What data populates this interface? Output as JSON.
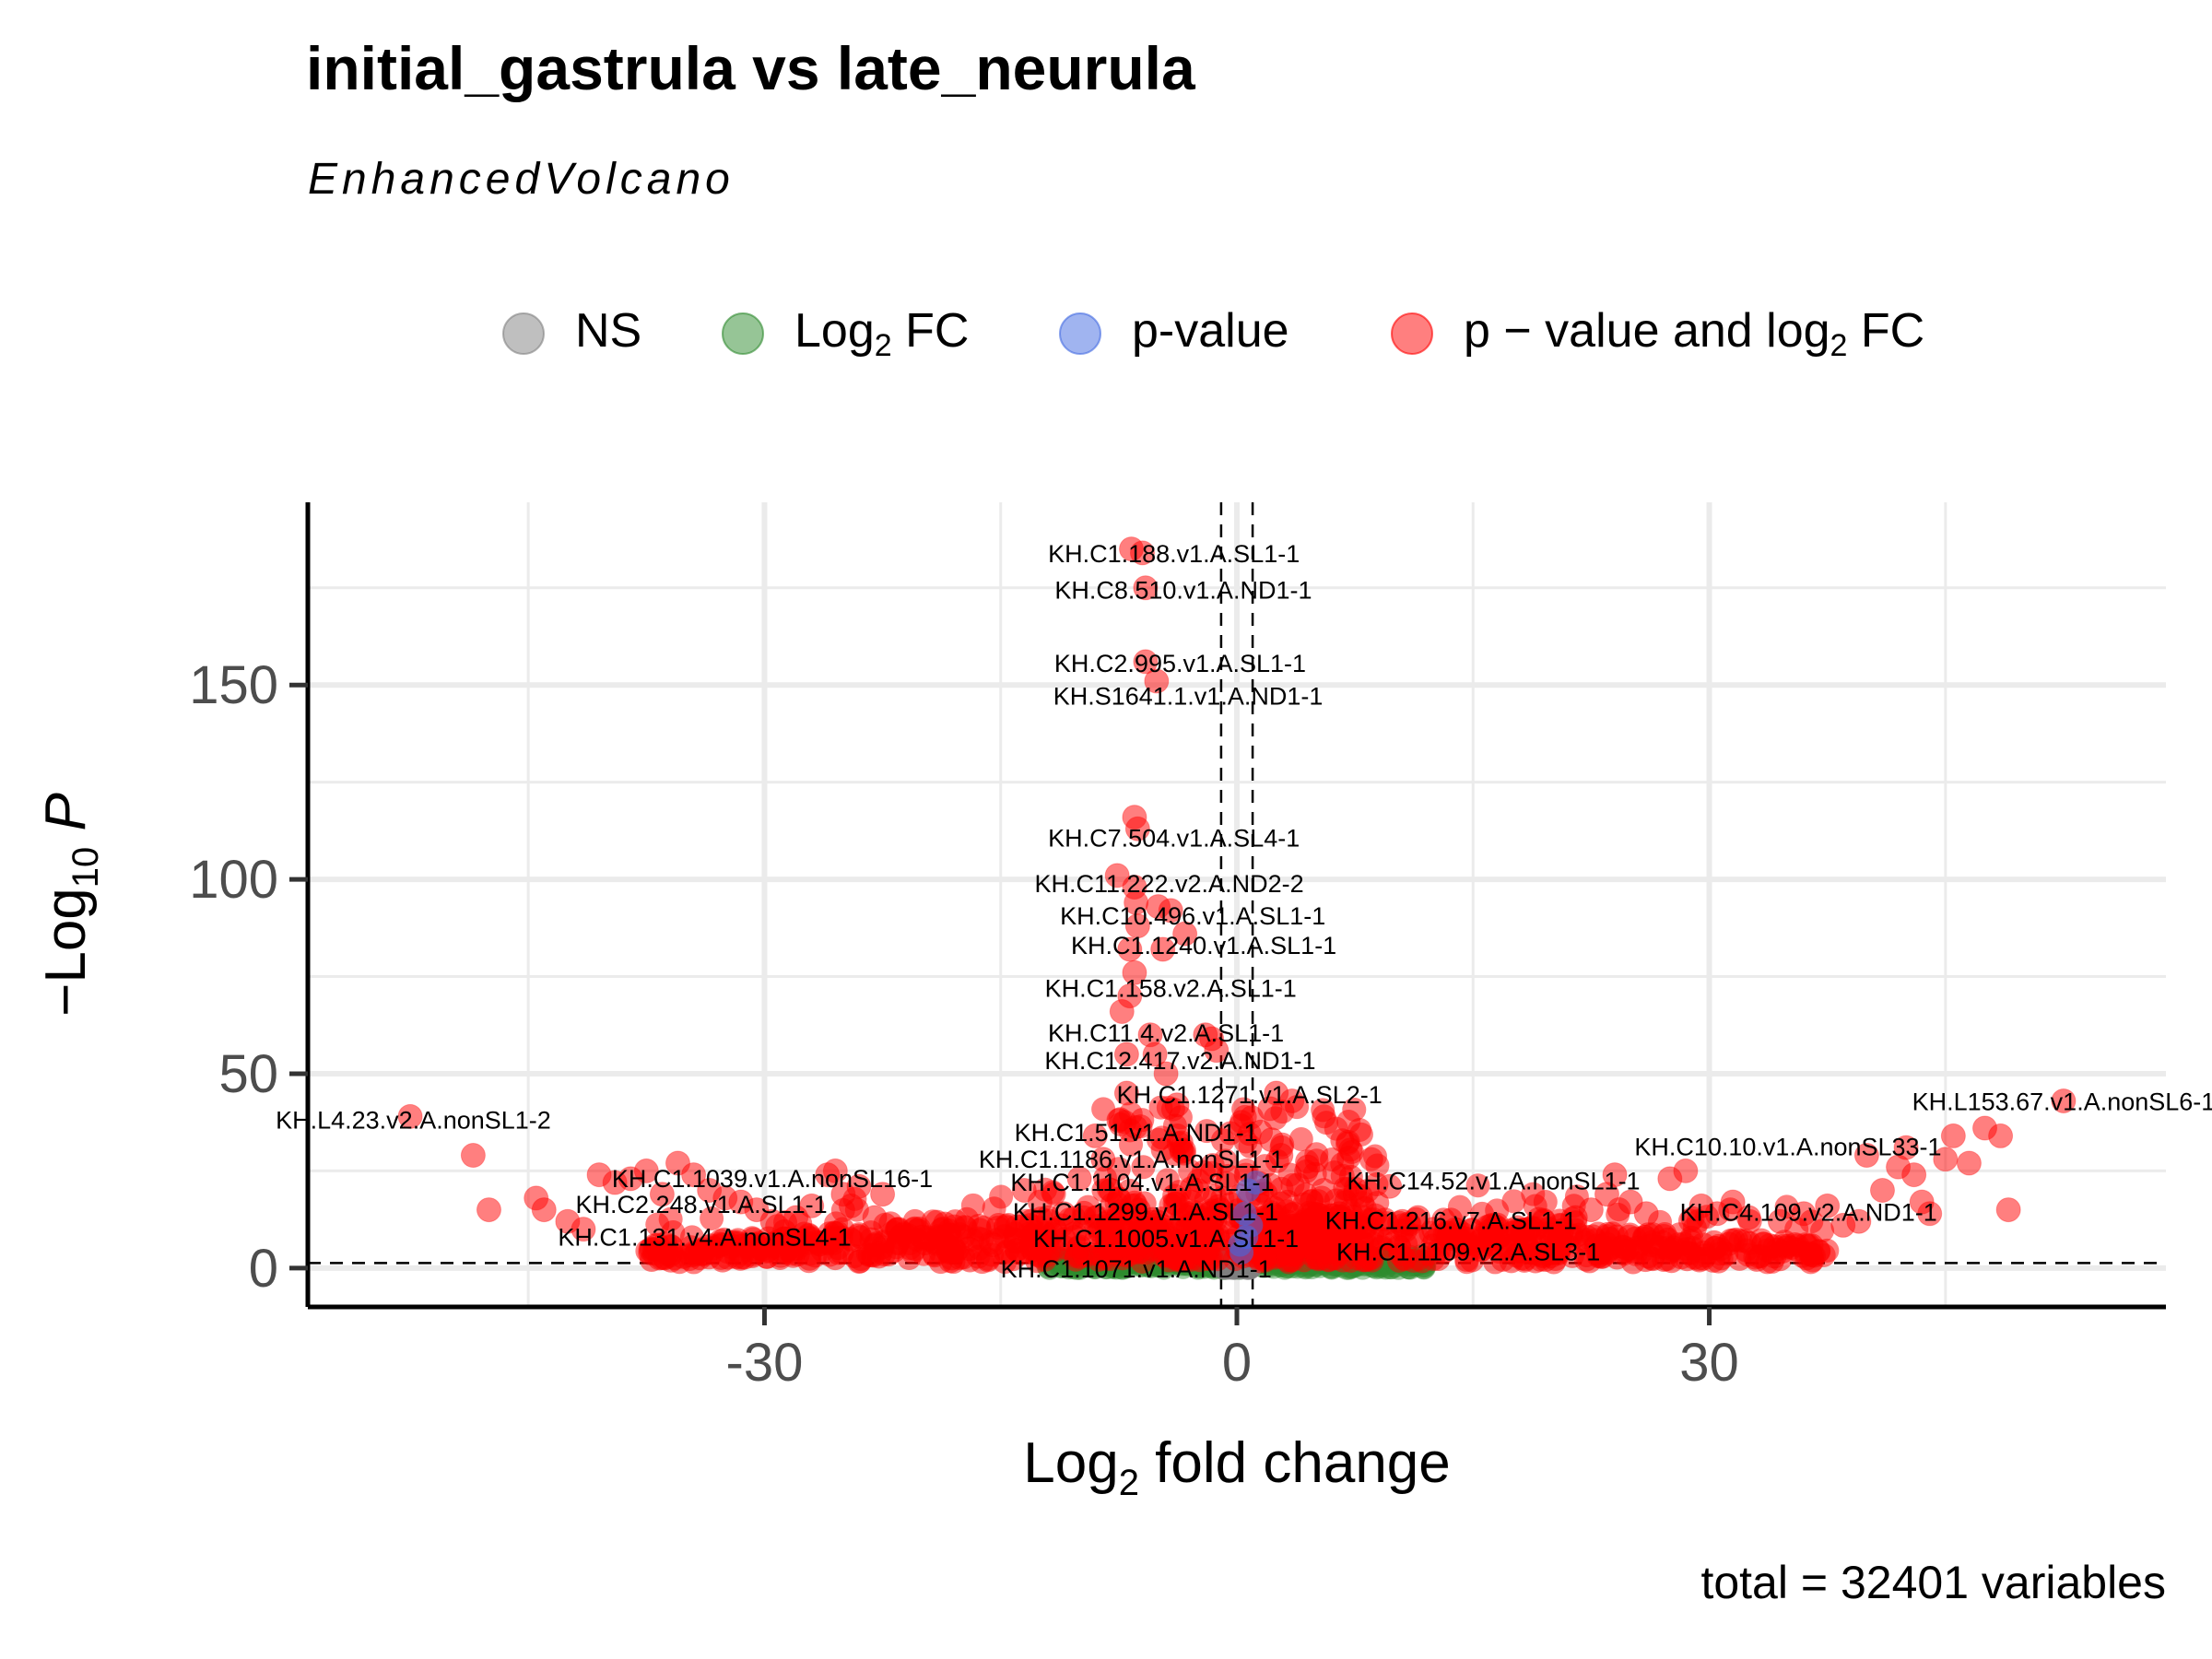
{
  "chart_data": {
    "type": "scatter",
    "title": "initial_gastrula vs late_neurula",
    "subtitle": "EnhancedVolcano",
    "caption": "total = 32401 variables",
    "xlabel": {
      "pre": "Log",
      "sub": "2",
      "post": " fold change"
    },
    "ylabel": {
      "pre": "−Log",
      "sub": "10",
      "italic": " P"
    },
    "xlim": [
      -59,
      59
    ],
    "ylim": [
      -10,
      197
    ],
    "x_ticks": [
      {
        "value": -30,
        "label": "-30"
      },
      {
        "value": 0,
        "label": "0"
      },
      {
        "value": 30,
        "label": "30"
      }
    ],
    "y_ticks": [
      {
        "value": 0,
        "label": "0"
      },
      {
        "value": 50,
        "label": "50"
      },
      {
        "value": 100,
        "label": "100"
      },
      {
        "value": 150,
        "label": "150"
      }
    ],
    "minor_x": [
      -45,
      -15,
      15,
      45
    ],
    "minor_y": [
      25,
      75,
      125,
      175
    ],
    "grid": true,
    "fc_cutoff": 1,
    "p_cutoff": 1.3,
    "legend_position": "top",
    "legend": [
      {
        "key": "NS",
        "pre": "NS",
        "color": "#808080"
      },
      {
        "key": "FC",
        "pre": "Log",
        "sub": "2",
        "post": " FC",
        "color": "#2e8b2e"
      },
      {
        "key": "P",
        "pre": "p-value",
        "color": "#4169e1"
      },
      {
        "key": "PFC",
        "pre": "p − value and log",
        "sub": "2",
        "post": " FC",
        "color": "#ff0000"
      }
    ],
    "points": [
      [
        -52.5,
        39
      ],
      [
        -48.5,
        29
      ],
      [
        -47.5,
        15
      ],
      [
        -44.5,
        18
      ],
      [
        -44,
        15
      ],
      [
        -42.5,
        12
      ],
      [
        -41.5,
        10
      ],
      [
        -40.5,
        24
      ],
      [
        -39.5,
        22
      ],
      [
        -38.5,
        23
      ],
      [
        -37.5,
        25
      ],
      [
        -36.5,
        19
      ],
      [
        -35.5,
        27
      ],
      [
        -34.5,
        24
      ],
      [
        -33.5,
        20
      ],
      [
        -32.5,
        18
      ],
      [
        -31.5,
        17
      ],
      [
        -30.5,
        15
      ],
      [
        -29.5,
        12
      ],
      [
        -28,
        13
      ],
      [
        -27,
        16
      ],
      [
        -26,
        24
      ],
      [
        -25.5,
        25
      ],
      [
        -25,
        19
      ],
      [
        -24.5,
        16
      ],
      [
        -24,
        21
      ],
      [
        -23,
        13
      ],
      [
        -22.5,
        19
      ],
      [
        -21.5,
        10
      ],
      [
        -20,
        8
      ],
      [
        -18.5,
        6
      ],
      [
        -17,
        5
      ],
      [
        -15.5,
        6
      ],
      [
        -14,
        7
      ],
      [
        -13.5,
        20
      ],
      [
        -12.5,
        17
      ],
      [
        -12,
        13
      ],
      [
        -11,
        14
      ],
      [
        -10,
        23
      ],
      [
        -9,
        34
      ],
      [
        -8.5,
        28
      ],
      [
        -8,
        20
      ],
      [
        -7.5,
        38
      ],
      [
        -7,
        45
      ],
      [
        -7,
        55
      ],
      [
        -7.3,
        66
      ],
      [
        -6.8,
        70
      ],
      [
        -6.5,
        76
      ],
      [
        -6.8,
        82
      ],
      [
        -6.3,
        88
      ],
      [
        -7.6,
        101
      ],
      [
        -6.4,
        94
      ],
      [
        -6.5,
        98
      ],
      [
        -6.5,
        116
      ],
      [
        -6.3,
        113
      ],
      [
        -6.7,
        185
      ],
      [
        -6,
        184
      ],
      [
        -5.8,
        175
      ],
      [
        -5.8,
        156
      ],
      [
        -5.1,
        151
      ],
      [
        -5,
        93
      ],
      [
        -4.2,
        92
      ],
      [
        -3.3,
        86
      ],
      [
        -4.7,
        82
      ],
      [
        -5.5,
        60
      ],
      [
        -5.2,
        55
      ],
      [
        -4.5,
        50
      ],
      [
        -1.6,
        59
      ],
      [
        -2,
        60
      ],
      [
        -1.3,
        56
      ],
      [
        -3.8,
        42
      ],
      [
        -3.5,
        30
      ],
      [
        -2.5,
        20
      ],
      [
        2.5,
        45
      ],
      [
        2.1,
        41
      ],
      [
        1.5,
        35
      ],
      [
        2.2,
        33
      ],
      [
        2.8,
        29
      ],
      [
        3.5,
        43
      ],
      [
        4.5,
        26
      ],
      [
        5.5,
        20
      ],
      [
        6.5,
        14
      ],
      [
        7.5,
        19
      ],
      [
        9.7,
        21
      ],
      [
        10.5,
        12
      ],
      [
        11.5,
        13
      ],
      [
        12.5,
        10
      ],
      [
        13.5,
        9
      ],
      [
        14.5,
        6
      ],
      [
        15.5,
        7
      ],
      [
        16.5,
        8
      ],
      [
        17.5,
        9
      ],
      [
        18.5,
        10
      ],
      [
        19.5,
        12
      ],
      [
        20.5,
        11
      ],
      [
        21.5,
        13
      ],
      [
        22.5,
        15
      ],
      [
        23.5,
        19
      ],
      [
        24,
        24
      ],
      [
        25,
        17
      ],
      [
        26,
        14
      ],
      [
        27.5,
        23
      ],
      [
        28.5,
        25
      ],
      [
        29.5,
        16
      ],
      [
        30.5,
        14
      ],
      [
        31.5,
        17
      ],
      [
        32.5,
        13
      ],
      [
        34.5,
        12
      ],
      [
        36,
        14
      ],
      [
        37.5,
        16
      ],
      [
        38.5,
        11
      ],
      [
        39.5,
        12
      ],
      [
        40,
        29
      ],
      [
        41,
        20
      ],
      [
        42,
        26
      ],
      [
        42.5,
        31
      ],
      [
        43,
        24
      ],
      [
        43.5,
        17
      ],
      [
        44,
        14
      ],
      [
        45,
        28
      ],
      [
        45.5,
        34
      ],
      [
        46.5,
        27
      ],
      [
        47.5,
        36
      ],
      [
        48.5,
        34
      ],
      [
        49,
        15
      ],
      [
        52.5,
        43
      ]
    ],
    "blue_points": [
      [
        0.3,
        4
      ],
      [
        0.6,
        8
      ],
      [
        0.9,
        11
      ],
      [
        0.7,
        20
      ],
      [
        0.2,
        6
      ],
      [
        1.2,
        22
      ],
      [
        0.5,
        14
      ]
    ],
    "labels": [
      {
        "text": "KH.C1.188.v1.A.SL1-1",
        "x": -4,
        "y": 184
      },
      {
        "text": "KH.C8.510.v1.A.ND1-1",
        "x": -3.4,
        "y": 174.6
      },
      {
        "text": "KH.C2.995.v1.A.SL1-1",
        "x": -3.6,
        "y": 155.7
      },
      {
        "text": "KH.S1641.1.v1.A.ND1-1",
        "x": -3.1,
        "y": 147.3
      },
      {
        "text": "KH.C7.504.v1.A.SL4-1",
        "x": -4,
        "y": 110.8
      },
      {
        "text": "KH.C11.222.v2.A.ND2-2",
        "x": -4.3,
        "y": 99.1
      },
      {
        "text": "KH.C10.496.v1.A.SL1-1",
        "x": -2.8,
        "y": 90.8
      },
      {
        "text": "KH.C1.1240.v1.A.SL1-1",
        "x": -2.1,
        "y": 83.2
      },
      {
        "text": "KH.C1.158.v2.A.SL1-1",
        "x": -4.2,
        "y": 72.2
      },
      {
        "text": "KH.C11.4.v2.A.SL1-1",
        "x": -4.5,
        "y": 60.7
      },
      {
        "text": "KH.C12.417.v2.A.ND1-1",
        "x": -3.6,
        "y": 53.6
      },
      {
        "text": "KH.C1.1271.v1.A.SL2-1",
        "x": 0.8,
        "y": 44.8
      },
      {
        "text": "KH.L153.67.v1.A.nonSL6-1",
        "x": 52.5,
        "y": 43
      },
      {
        "text": "KH.L4.23.v2.A.nonSL1-2",
        "x": -52.3,
        "y": 38.3
      },
      {
        "text": "KH.C10.10.v1.A.nonSL33-1",
        "x": 35,
        "y": 31.4
      },
      {
        "text": "KH.C1.51.v1.A.ND1-1",
        "x": -6.4,
        "y": 35
      },
      {
        "text": "KH.C1.1186.v1.A.nonSL1-1",
        "x": -6.7,
        "y": 28.2
      },
      {
        "text": "KH.C1.1039.v1.A.nonSL16-1",
        "x": -29.5,
        "y": 23.2
      },
      {
        "text": "KH.C14.52.v1.A.nonSL1-1",
        "x": 16.3,
        "y": 22.6
      },
      {
        "text": "KH.C1.1104.v1.A.SL1-1",
        "x": -6,
        "y": 22.3
      },
      {
        "text": "KH.C2.248.v1.A.SL1-1",
        "x": -34,
        "y": 16.5
      },
      {
        "text": "KH.C1.1299.v1.A.SL1-1",
        "x": -5.8,
        "y": 14.7
      },
      {
        "text": "KH.C4.109.v2.A.ND1-1",
        "x": 36.3,
        "y": 14.6
      },
      {
        "text": "KH.C1.216.v7.A.SL1-1",
        "x": 13.6,
        "y": 12.4
      },
      {
        "text": "KH.C1.131.v4.A.nonSL4-1",
        "x": -33.8,
        "y": 8.1
      },
      {
        "text": "KH.C1.1005.v1.A.SL1-1",
        "x": -4.5,
        "y": 7.8
      },
      {
        "text": "KH.C1.1109.v2.A.SL3-1",
        "x": 14.7,
        "y": 4.4
      },
      {
        "text": "KH.C1.1071.v1.A.ND1-1",
        "x": -6.4,
        "y": 0
      }
    ]
  }
}
